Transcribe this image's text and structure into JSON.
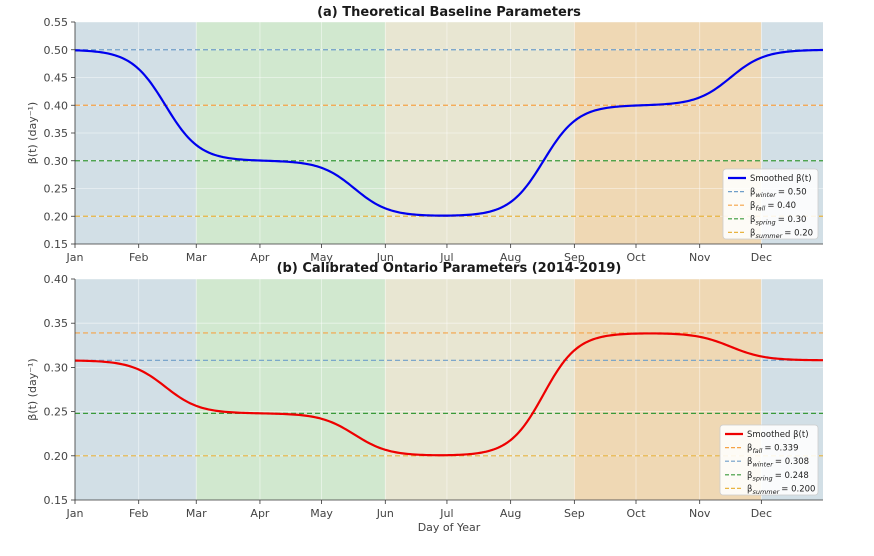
{
  "chart_data": [
    {
      "type": "line",
      "title": "(a) Theoretical Baseline Parameters",
      "ylabel": "β(t) (day⁻¹)",
      "xlabel": "",
      "ylim": [
        0.15,
        0.55
      ],
      "yticks": [
        "0.15",
        "0.20",
        "0.25",
        "0.30",
        "0.35",
        "0.40",
        "0.45",
        "0.50",
        "0.55"
      ],
      "xlim": [
        1,
        365
      ],
      "season_bands": [
        {
          "name": "winter",
          "start": 1,
          "end": 60,
          "color": "#d2dfe6"
        },
        {
          "name": "spring",
          "start": 60,
          "end": 152,
          "color": "#d1e8cf"
        },
        {
          "name": "summer",
          "start": 152,
          "end": 244,
          "color": "#e8e6d2"
        },
        {
          "name": "fall",
          "start": 244,
          "end": 335,
          "color": "#efd8b4"
        },
        {
          "name": "winter",
          "start": 335,
          "end": 365,
          "color": "#d2dfe6"
        }
      ],
      "season_values": {
        "winter": 0.5,
        "spring": 0.3,
        "summer": 0.2,
        "fall": 0.4
      },
      "series": [
        {
          "name": "Smoothed β(t)",
          "color": "#0000ee"
        }
      ],
      "reference_lines": [
        {
          "season": "winter",
          "label_sub": "winter",
          "value_text": "= 0.50",
          "value": 0.5,
          "color": "#6f9ec9"
        },
        {
          "season": "fall",
          "label_sub": "fall",
          "value_text": "= 0.40",
          "value": 0.4,
          "color": "#f5a347"
        },
        {
          "season": "spring",
          "label_sub": "spring",
          "value_text": "= 0.30",
          "value": 0.3,
          "color": "#3a9a3a"
        },
        {
          "season": "summer",
          "label_sub": "summer",
          "value_text": "= 0.20",
          "value": 0.2,
          "color": "#e8b441"
        }
      ],
      "legend_location": "lower-right"
    },
    {
      "type": "line",
      "title": "(b) Calibrated Ontario Parameters (2014-2019)",
      "ylabel": "β(t) (day⁻¹)",
      "xlabel": "Day of Year",
      "ylim": [
        0.15,
        0.4
      ],
      "yticks": [
        "0.15",
        "0.20",
        "0.25",
        "0.30",
        "0.35",
        "0.40"
      ],
      "xlim": [
        1,
        365
      ],
      "season_bands": [
        {
          "name": "winter",
          "start": 1,
          "end": 60,
          "color": "#d2dfe6"
        },
        {
          "name": "spring",
          "start": 60,
          "end": 152,
          "color": "#d1e8cf"
        },
        {
          "name": "summer",
          "start": 152,
          "end": 244,
          "color": "#e8e6d2"
        },
        {
          "name": "fall",
          "start": 244,
          "end": 335,
          "color": "#efd8b4"
        },
        {
          "name": "winter",
          "start": 335,
          "end": 365,
          "color": "#d2dfe6"
        }
      ],
      "season_values": {
        "winter": 0.308,
        "spring": 0.248,
        "summer": 0.2,
        "fall": 0.339
      },
      "series": [
        {
          "name": "Smoothed β(t)",
          "color": "#ee0000"
        }
      ],
      "reference_lines": [
        {
          "season": "fall",
          "label_sub": "fall",
          "value_text": "= 0.339",
          "value": 0.339,
          "color": "#f5a347"
        },
        {
          "season": "winter",
          "label_sub": "winter",
          "value_text": "= 0.308",
          "value": 0.308,
          "color": "#6f9ec9"
        },
        {
          "season": "spring",
          "label_sub": "spring",
          "value_text": "= 0.248",
          "value": 0.248,
          "color": "#3a9a3a"
        },
        {
          "season": "summer",
          "label_sub": "summer",
          "value_text": "= 0.200",
          "value": 0.2,
          "color": "#e8b441"
        }
      ],
      "legend_location": "lower-right"
    }
  ],
  "x_axis": {
    "months": [
      "Jan",
      "Feb",
      "Mar",
      "Apr",
      "May",
      "Jun",
      "Jul",
      "Aug",
      "Sep",
      "Oct",
      "Nov",
      "Dec"
    ],
    "month_days": [
      1,
      32,
      60,
      91,
      121,
      152,
      182,
      213,
      244,
      274,
      305,
      335
    ]
  }
}
